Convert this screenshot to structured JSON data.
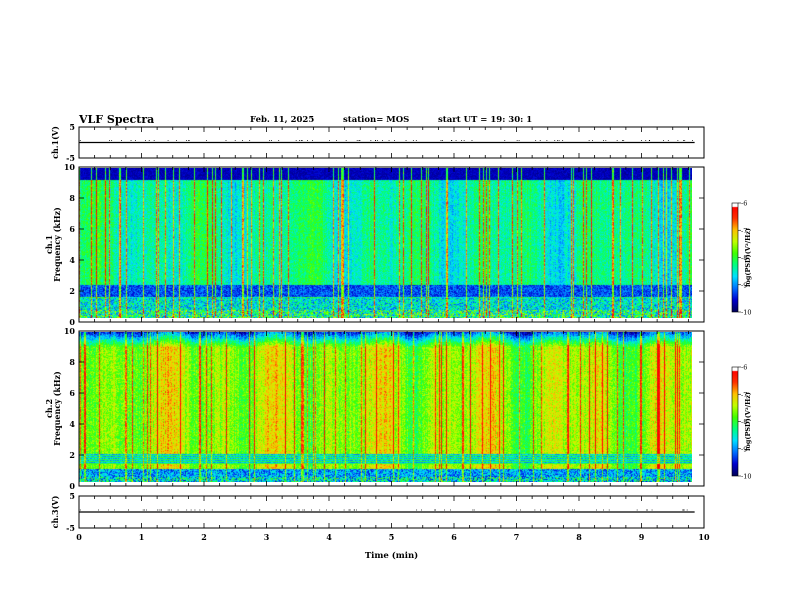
{
  "header": {
    "title": "VLF Spectra",
    "date": "Feb. 11, 2025",
    "station": "station= MOS",
    "start_ut": "start  UT =   19: 30: 1"
  },
  "chart_data": [
    {
      "type": "line",
      "panel": "ch1-voltage",
      "ylabel": "ch.1(V)",
      "ylim": [
        -5,
        5
      ],
      "y_ticks": [
        5,
        -5
      ],
      "x": [
        0,
        9.85
      ],
      "series": [
        {
          "values": [
            0,
            0
          ]
        }
      ]
    },
    {
      "type": "heatmap",
      "panel": "ch1-spectrogram",
      "ylabel_line1": "ch.1",
      "ylabel_line2": "Frequency (kHz)",
      "ylim": [
        0,
        10
      ],
      "y_ticks": [
        0,
        2,
        4,
        6,
        8,
        10
      ],
      "xlim": [
        0,
        9.85
      ],
      "colorbar": {
        "label": "log(PSD)(V²/Hz)",
        "range": [
          -10,
          -6
        ],
        "ticks": [
          "-6",
          "-7",
          "-8",
          "-9",
          "-10"
        ]
      }
    },
    {
      "type": "heatmap",
      "panel": "ch2-spectrogram",
      "ylabel_line1": "ch.2",
      "ylabel_line2": "Frequency (kHz)",
      "ylim": [
        0,
        10
      ],
      "y_ticks": [
        0,
        2,
        4,
        6,
        8,
        10
      ],
      "xlim": [
        0,
        9.85
      ],
      "colorbar": {
        "label": "log(PSD)(V²/Hz)",
        "range": [
          -10,
          -6
        ],
        "ticks": [
          "-6",
          "-7",
          "-8",
          "-9",
          "-10"
        ]
      }
    },
    {
      "type": "line",
      "panel": "ch3-voltage",
      "ylabel": "ch.3(V)",
      "ylim": [
        -5,
        5
      ],
      "y_ticks": [
        5,
        -5
      ],
      "x": [
        0,
        9.85
      ],
      "series": [
        {
          "values": [
            0,
            0
          ]
        }
      ]
    }
  ],
  "x_axis": {
    "label": "Time (min)",
    "range": [
      0,
      10
    ],
    "ticks": [
      "0",
      "1",
      "2",
      "3",
      "4",
      "5",
      "6",
      "7",
      "8",
      "9",
      "10"
    ]
  },
  "colors": {
    "colormap": [
      "#00005a",
      "#0000d0",
      "#0070ff",
      "#00e0ff",
      "#00ff80",
      "#40ff00",
      "#c0ff00",
      "#ffc000",
      "#ff3000",
      "#ff0000",
      "#ffffff"
    ]
  }
}
